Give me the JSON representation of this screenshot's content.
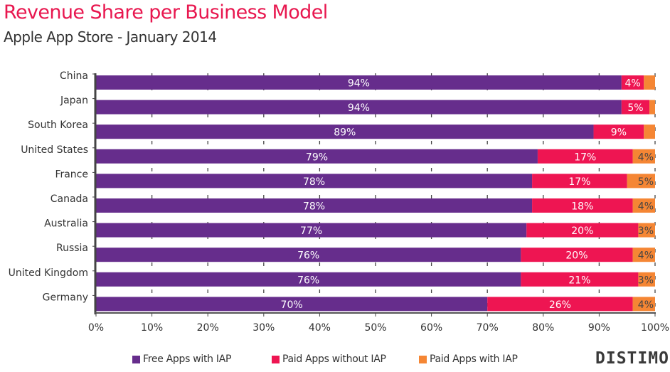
{
  "header": {
    "title": "Revenue Share per Business Model",
    "subtitle": "Apple App Store - January 2014"
  },
  "logo": {
    "text": "DISTIMO"
  },
  "chart_data": {
    "type": "bar",
    "orientation": "horizontal",
    "stacked": true,
    "title": "Revenue Share per Business Model",
    "subtitle": "Apple App Store - January 2014",
    "xlabel": "",
    "ylabel": "",
    "xlim": [
      0,
      100
    ],
    "x_ticks": [
      0,
      10,
      20,
      30,
      40,
      50,
      60,
      70,
      80,
      90,
      100
    ],
    "x_tick_labels": [
      "0%",
      "10%",
      "20%",
      "30%",
      "40%",
      "50%",
      "60%",
      "70%",
      "80%",
      "90%",
      "100%"
    ],
    "grid": "vertical dashed",
    "legend_position": "bottom",
    "categories": [
      "China",
      "Japan",
      "South Korea",
      "United States",
      "France",
      "Canada",
      "Australia",
      "Russia",
      "United Kingdom",
      "Germany"
    ],
    "series": [
      {
        "name": "Free Apps with IAP",
        "color": "#662d8c",
        "values": [
          94,
          94,
          89,
          79,
          78,
          78,
          77,
          76,
          76,
          70
        ],
        "labels": [
          "94%",
          "94%",
          "89%",
          "79%",
          "78%",
          "78%",
          "77%",
          "76%",
          "76%",
          "70%"
        ],
        "label_color": "#ffffff"
      },
      {
        "name": "Paid Apps without IAP",
        "color": "#ee1552",
        "values": [
          4,
          5,
          9,
          17,
          17,
          18,
          20,
          20,
          21,
          26
        ],
        "labels": [
          "4%",
          "5%",
          "9%",
          "17%",
          "17%",
          "18%",
          "20%",
          "20%",
          "21%",
          "26%"
        ],
        "label_color": "#ffffff"
      },
      {
        "name": "Paid Apps with IAP",
        "color": "#f58634",
        "values": [
          2,
          1,
          2,
          4,
          5,
          4,
          3,
          4,
          3,
          4
        ],
        "labels": [
          "",
          "",
          "",
          "4%",
          "5%",
          "4%",
          "3%",
          "4%",
          "3%",
          "4%"
        ],
        "label_color": "#444444"
      }
    ]
  }
}
